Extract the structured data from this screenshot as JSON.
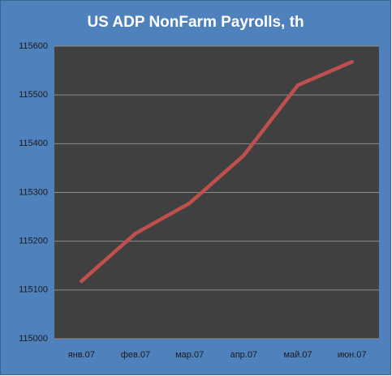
{
  "chart_data": {
    "type": "line",
    "title": "US ADP NonFarm Payrolls, th",
    "categories": [
      "янв.07",
      "фев.07",
      "мар.07",
      "апр.07",
      "май.07",
      "июн.07"
    ],
    "series": [
      {
        "name": "US ADP NonFarm Payrolls",
        "color": "#c0504d",
        "values": [
          115118,
          115216,
          115278,
          115376,
          115520,
          115568
        ]
      }
    ],
    "ylim": [
      115000,
      115600
    ],
    "yticks": [
      115000,
      115100,
      115200,
      115300,
      115400,
      115500,
      115600
    ],
    "grid": true
  }
}
